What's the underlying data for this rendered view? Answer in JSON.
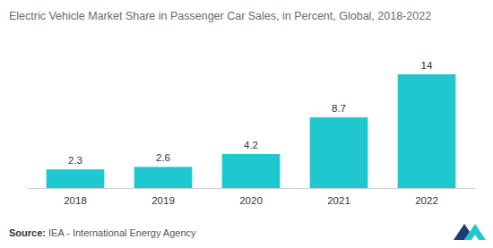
{
  "chart_data": {
    "type": "bar",
    "title": "Electric Vehicle Market Share in Passenger Car Sales, in Percent, Global, 2018-2022",
    "categories": [
      "2018",
      "2019",
      "2020",
      "2021",
      "2022"
    ],
    "values": [
      2.3,
      2.6,
      4.2,
      8.7,
      14
    ],
    "color": "#1fc8cf",
    "ylim": [
      0,
      14
    ],
    "grid": false,
    "data_labels": true,
    "tick_labels": "x",
    "source": "Source: IEA - International Energy Agency"
  }
}
